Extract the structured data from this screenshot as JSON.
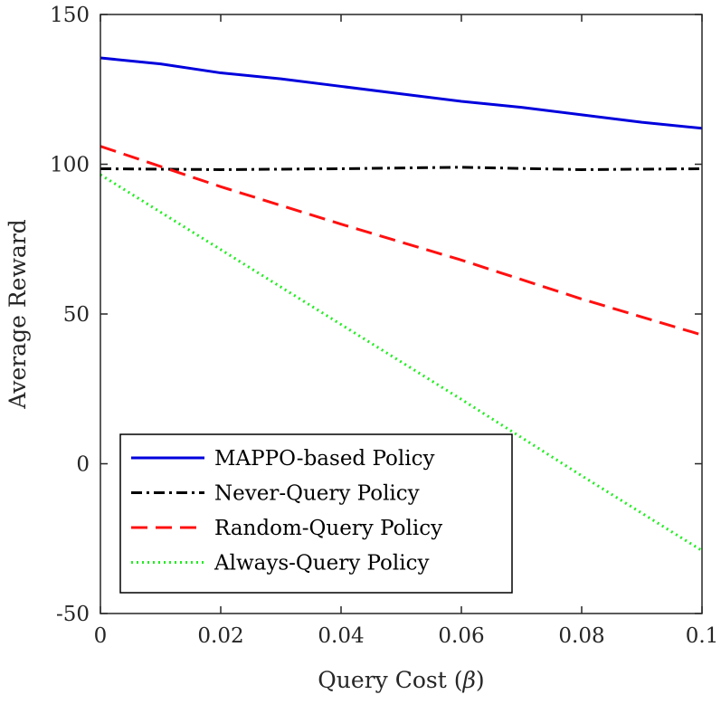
{
  "chart_data": {
    "type": "line",
    "title": "",
    "xlabel_text": "Query Cost (",
    "xlabel_symbol": "β",
    "xlabel_close": ")",
    "ylabel": "Average Reward",
    "xlim": [
      0,
      0.1
    ],
    "ylim": [
      -50,
      150
    ],
    "xticks": [
      0,
      0.02,
      0.04,
      0.06,
      0.08,
      0.1
    ],
    "xtick_labels": [
      "0",
      "0.02",
      "0.04",
      "0.06",
      "0.08",
      "0.1"
    ],
    "yticks": [
      -50,
      0,
      50,
      100,
      150
    ],
    "ytick_labels": [
      "-50",
      "0",
      "50",
      "100",
      "150"
    ],
    "grid": false,
    "legend_location": "bottom-left",
    "series": [
      {
        "name": "MAPPO-based Policy",
        "color": "#0000dd",
        "dash": "solid",
        "x": [
          0,
          0.01,
          0.02,
          0.03,
          0.04,
          0.05,
          0.06,
          0.07,
          0.08,
          0.09,
          0.1
        ],
        "y": [
          135.5,
          133.5,
          130.5,
          128.5,
          126,
          123.5,
          121,
          119,
          116.5,
          114,
          112
        ]
      },
      {
        "name": "Never-Query Policy",
        "color": "#000000",
        "dash": "dashdot",
        "x": [
          0,
          0.02,
          0.04,
          0.06,
          0.08,
          0.1
        ],
        "y": [
          98.5,
          98.2,
          98.5,
          99,
          98.2,
          98.5
        ]
      },
      {
        "name": "Random-Query Policy",
        "color": "#ff1010",
        "dash": "dashed",
        "x": [
          0,
          0.02,
          0.04,
          0.06,
          0.08,
          0.1
        ],
        "y": [
          106,
          92.5,
          80,
          68,
          55,
          43
        ]
      },
      {
        "name": "Always-Query Policy",
        "color": "#22ee22",
        "dash": "dotted",
        "x": [
          0,
          0.02,
          0.04,
          0.06,
          0.08,
          0.1
        ],
        "y": [
          96.5,
          71.5,
          46.5,
          21.5,
          -4,
          -29
        ]
      }
    ]
  }
}
